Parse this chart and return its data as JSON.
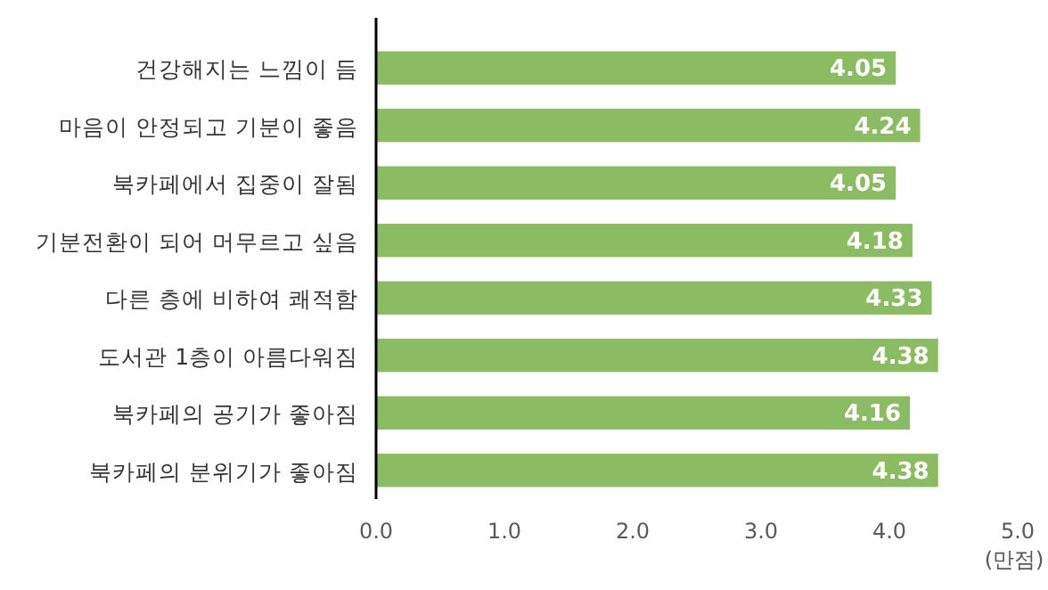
{
  "chart_data": {
    "type": "bar",
    "orientation": "horizontal",
    "categories": [
      "건강해지는 느낌이 듬",
      "마음이 안정되고 기분이 좋음",
      "북카페에서 집중이 잘됨",
      "기분전환이 되어 머무르고 싶음",
      "다른 층에 비하여 쾌적함",
      "도서관 1층이 아름다워짐",
      "북카페의 공기가 좋아짐",
      "북카페의 분위기가 좋아짐"
    ],
    "values": [
      4.05,
      4.24,
      4.05,
      4.18,
      4.33,
      4.38,
      4.16,
      4.38
    ],
    "color": "#8bbb63",
    "value_labels": [
      "4.05",
      "4.24",
      "4.05",
      "4.18",
      "4.33",
      "4.38",
      "4.16",
      "4.38"
    ],
    "xlim": [
      0,
      5
    ],
    "xticks": [
      {
        "value": 0,
        "label": "0.0"
      },
      {
        "value": 1,
        "label": "1.0"
      },
      {
        "value": 2,
        "label": "2.0"
      },
      {
        "value": 3,
        "label": "3.0"
      },
      {
        "value": 4,
        "label": "4.0"
      },
      {
        "value": 5,
        "label": "5.0"
      }
    ],
    "xlabel": "(만점)",
    "grid": false
  }
}
